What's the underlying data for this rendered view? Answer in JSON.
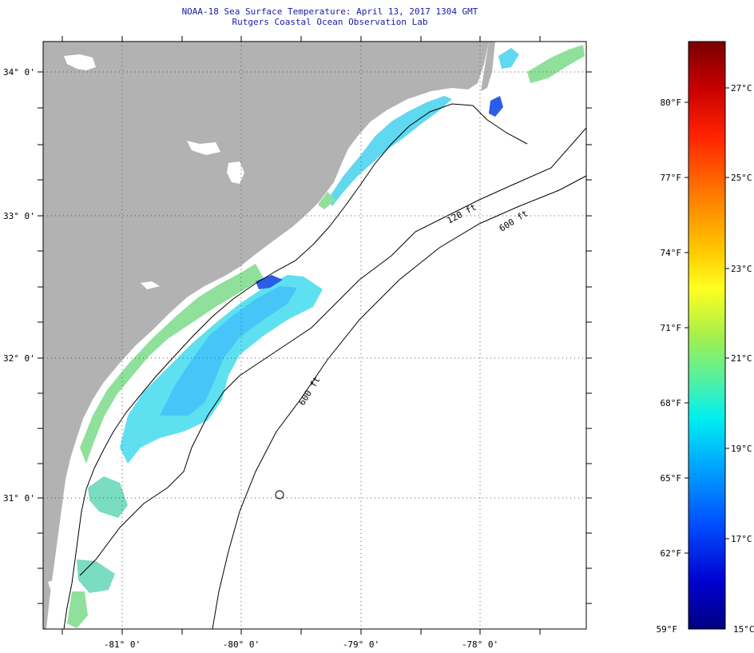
{
  "header": {
    "title": "NOAA-18 Sea Surface Temperature:  April 13, 2017 1304 GMT",
    "subtitle": "Rutgers Coastal Ocean Observation Lab"
  },
  "map": {
    "lat_labels": [
      "34° 0'",
      "33° 0'",
      "32° 0'",
      "31° 0'"
    ],
    "lon_labels": [
      "-81° 0'",
      "-80° 0'",
      "-79° 0'",
      "-78° 0'"
    ],
    "isobath_labels": [
      "120 ft",
      "600 ft",
      "600 ft"
    ],
    "colors": {
      "land": "#b2b2b2",
      "ocean_no_data": "#ffffff",
      "sst_cool": "#33c8ff",
      "sst_cyan": "#66e6f0",
      "sst_green": "#8fe08a",
      "sst_blue": "#2a5ee8"
    }
  },
  "colorbar": {
    "fahrenheit_labels": [
      "80°F",
      "77°F",
      "74°F",
      "71°F",
      "68°F",
      "65°F",
      "62°F",
      "59°F"
    ],
    "celsius_labels": [
      "27°C",
      "25°C",
      "23°C",
      "21°C",
      "19°C",
      "17°C",
      "15°C"
    ],
    "gradient_stops": [
      "#800000",
      "#d40000",
      "#ff2a00",
      "#ff7b00",
      "#ffc400",
      "#ffff00",
      "#aaff55",
      "#55ffaa",
      "#00ffff",
      "#00aaff",
      "#0055ff",
      "#0000d4",
      "#000080"
    ]
  }
}
